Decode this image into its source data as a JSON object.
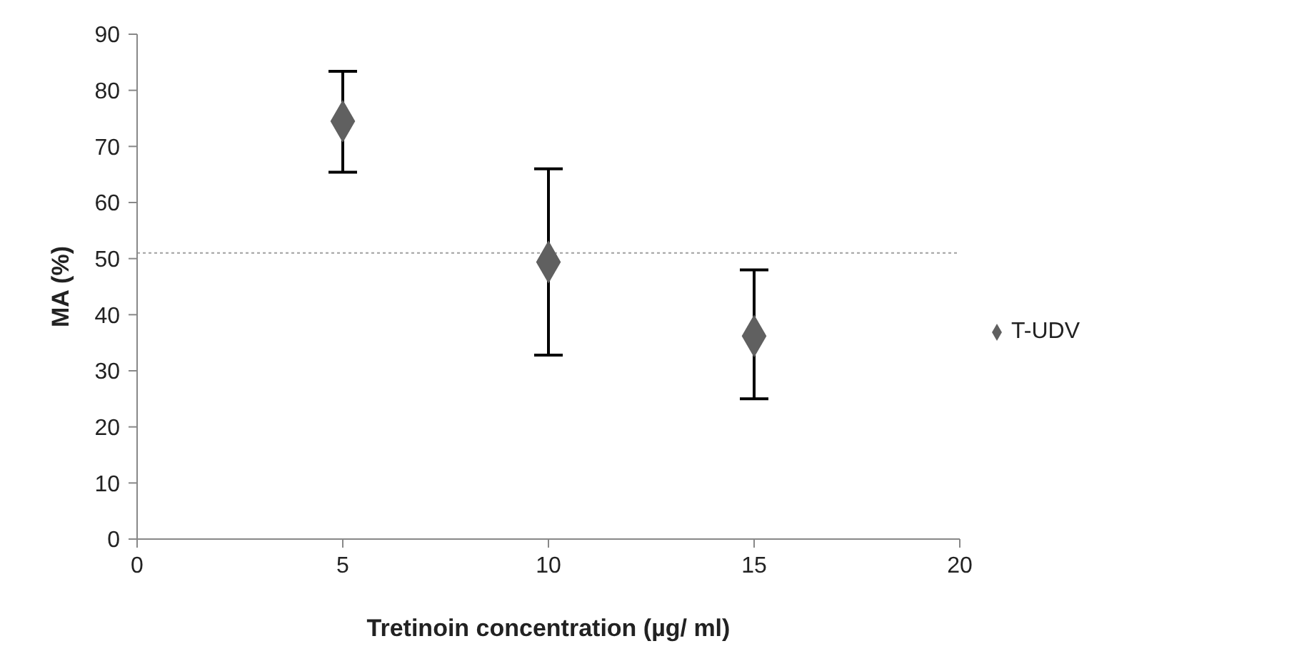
{
  "chart_data": {
    "type": "scatter",
    "xlabel": "Tretinoin concentration (µg/ ml)",
    "ylabel": "MA (%)",
    "x": [
      5,
      10,
      15
    ],
    "series": [
      {
        "name": "T-UDV",
        "color": "#606060",
        "values": [
          74.5,
          49.4,
          36.2
        ],
        "errors": [
          [
            65.4,
            83.4
          ],
          [
            32.8,
            66.0
          ],
          [
            25.0,
            48.0
          ]
        ]
      }
    ],
    "xlim": [
      0,
      20
    ],
    "xticks": [
      0,
      5,
      10,
      15,
      20
    ],
    "ylim": [
      0,
      90
    ],
    "yticks": [
      0,
      10,
      20,
      30,
      40,
      50,
      60,
      70,
      80,
      90
    ],
    "ref_lines": [
      {
        "axis": "y",
        "value": 51,
        "color": "#a0a0a0",
        "line_style": "dotted"
      }
    ],
    "marker": "diamond",
    "legend": "right",
    "grid": false
  }
}
